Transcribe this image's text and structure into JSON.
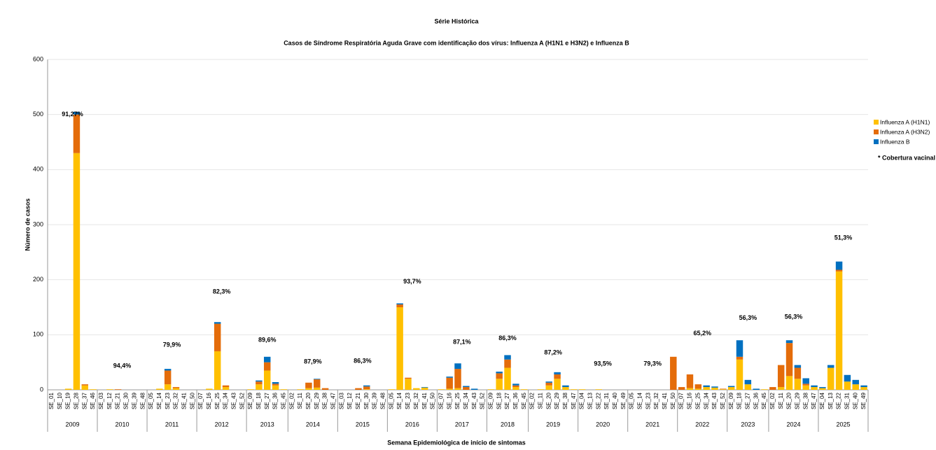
{
  "chart_data": {
    "type": "stacked_bar",
    "title": "Série Histórica",
    "subtitle": "Casos de Síndrome Respiratória Aguda Grave com identificação dos vírus: Influenza A (H1N1 e H3N2) e Influenza B",
    "y_label": "Número de casos",
    "x_label": "Semana Epidemiológica de início de sintomas",
    "note": "* Cobertura vacinal",
    "ylim": [
      0,
      600
    ],
    "yticks": [
      0,
      100,
      200,
      300,
      400,
      500,
      600
    ],
    "grid": true,
    "groups": [
      {
        "label": "2009",
        "categories": [
          "SE_01",
          "SE_10",
          "SE_19",
          "SE_28",
          "SE_37",
          "SE_46"
        ],
        "coverage": "91,27%",
        "coverage_y": 500
      },
      {
        "label": "2010",
        "categories": [
          "SE_03",
          "SE_12",
          "SE_21",
          "SE_30",
          "SE_39",
          "SE_48"
        ],
        "coverage": "94,4%",
        "coverage_y": 43
      },
      {
        "label": "2011",
        "categories": [
          "SE_05",
          "SE_14",
          "SE_23",
          "SE_32",
          "SE_41",
          "SE_50"
        ],
        "coverage": "79,9%",
        "coverage_y": 81
      },
      {
        "label": "2012",
        "categories": [
          "SE_07",
          "SE_16",
          "SE_25",
          "SE_34",
          "SE_43",
          "SE_52"
        ],
        "coverage": "82,3%",
        "coverage_y": 178
      },
      {
        "label": "2013",
        "categories": [
          "SE_09",
          "SE_18",
          "SE_27",
          "SE_36",
          "SE_45"
        ],
        "coverage": "89,6%",
        "coverage_y": 90
      },
      {
        "label": "2014",
        "categories": [
          "SE_02",
          "SE_11",
          "SE_20",
          "SE_29",
          "SE_38",
          "SE_47"
        ],
        "coverage": "87,9%",
        "coverage_y": 51
      },
      {
        "label": "2015",
        "categories": [
          "SE_03",
          "SE_12",
          "SE_21",
          "SE_30",
          "SE_39",
          "SE_48"
        ],
        "coverage": "86,3%",
        "coverage_y": 52
      },
      {
        "label": "2016",
        "categories": [
          "SE_05",
          "SE_14",
          "SE_23",
          "SE_32",
          "SE_41",
          "SE_50"
        ],
        "coverage": "93,7%",
        "coverage_y": 196
      },
      {
        "label": "2017",
        "categories": [
          "SE_07",
          "SE_16",
          "SE_25",
          "SE_34",
          "SE_43",
          "SE_52"
        ],
        "coverage": "87,1%",
        "coverage_y": 86
      },
      {
        "label": "2018",
        "categories": [
          "SE_09",
          "SE_18",
          "SE_27",
          "SE_36",
          "SE_45"
        ],
        "coverage": "86,3%",
        "coverage_y": 93
      },
      {
        "label": "2019",
        "categories": [
          "SE_02",
          "SE_11",
          "SE_20",
          "SE_29",
          "SE_38",
          "SE_47"
        ],
        "coverage": "87,2%",
        "coverage_y": 67
      },
      {
        "label": "2020",
        "categories": [
          "SE_04",
          "SE_13",
          "SE_22",
          "SE_31",
          "SE_40",
          "SE_49"
        ],
        "coverage": "93,5%",
        "coverage_y": 47
      },
      {
        "label": "2021",
        "categories": [
          "SE_05",
          "SE_14",
          "SE_23",
          "SE_32",
          "SE_41",
          "SE_50"
        ],
        "coverage": "79,3%",
        "coverage_y": 47
      },
      {
        "label": "2022",
        "categories": [
          "SE_07",
          "SE_16",
          "SE_25",
          "SE_34",
          "SE_43",
          "SE_52"
        ],
        "coverage": "65,2%",
        "coverage_y": 102
      },
      {
        "label": "2023",
        "categories": [
          "SE_09",
          "SE_18",
          "SE_27",
          "SE_36",
          "SE_45"
        ],
        "coverage": "56,3%",
        "coverage_y": 130
      },
      {
        "label": "2024",
        "categories": [
          "SE_02",
          "SE_11",
          "SE_20",
          "SE_29",
          "SE_38",
          "SE_47"
        ],
        "coverage": "56,3%",
        "coverage_y": 132
      },
      {
        "label": "2025",
        "categories": [
          "SE_04",
          "SE_13",
          "SE_22",
          "SE_31",
          "SE_40",
          "SE_49"
        ],
        "coverage": "51,3%",
        "coverage_y": 276
      }
    ],
    "series": [
      {
        "name": "Influenza A (H1N1)",
        "color": "#ffc000",
        "values": [
          0,
          0,
          2,
          430,
          8,
          1,
          0,
          1,
          0,
          0,
          0,
          0,
          0,
          2,
          10,
          3,
          0,
          0,
          0,
          2,
          70,
          5,
          0,
          0,
          1,
          10,
          35,
          8,
          1,
          0,
          1,
          3,
          4,
          0,
          0,
          0,
          0,
          0,
          1,
          0,
          0,
          1,
          150,
          20,
          3,
          4,
          0,
          1,
          2,
          3,
          0,
          0,
          0,
          1,
          20,
          40,
          5,
          1,
          0,
          1,
          8,
          20,
          5,
          1,
          1,
          0,
          1,
          0,
          0,
          0,
          0,
          0,
          0,
          0,
          0,
          0,
          0,
          3,
          2,
          5,
          4,
          1,
          5,
          55,
          10,
          0,
          1,
          0,
          5,
          25,
          20,
          8,
          5,
          3,
          40,
          215,
          15,
          10,
          5
        ]
      },
      {
        "name": "Influenza A (H3N2)",
        "color": "#e46c0a",
        "values": [
          0,
          0,
          0,
          70,
          2,
          0,
          0,
          0,
          1,
          0,
          0,
          0,
          0,
          0,
          25,
          2,
          0,
          0,
          0,
          0,
          50,
          3,
          0,
          0,
          0,
          5,
          15,
          3,
          0,
          0,
          0,
          10,
          15,
          3,
          0,
          0,
          0,
          3,
          5,
          0,
          0,
          0,
          5,
          2,
          0,
          0,
          0,
          0,
          20,
          35,
          5,
          0,
          0,
          0,
          10,
          15,
          3,
          0,
          0,
          0,
          5,
          8,
          0,
          0,
          0,
          0,
          0,
          0,
          0,
          0,
          0,
          0,
          0,
          0,
          0,
          60,
          5,
          25,
          8,
          0,
          0,
          1,
          0,
          5,
          0,
          0,
          0,
          5,
          40,
          60,
          20,
          3,
          0,
          0,
          0,
          3,
          0,
          0,
          0
        ]
      },
      {
        "name": "Influenza B",
        "color": "#0070c0",
        "values": [
          0,
          0,
          0,
          5,
          0,
          0,
          0,
          0,
          0,
          0,
          0,
          0,
          0,
          0,
          3,
          0,
          0,
          0,
          0,
          0,
          3,
          0,
          0,
          0,
          0,
          2,
          10,
          3,
          0,
          0,
          0,
          0,
          1,
          0,
          0,
          0,
          0,
          0,
          2,
          0,
          0,
          0,
          2,
          0,
          0,
          1,
          0,
          0,
          2,
          10,
          2,
          2,
          0,
          0,
          3,
          8,
          3,
          0,
          0,
          0,
          2,
          4,
          3,
          0,
          0,
          0,
          0,
          0,
          0,
          0,
          0,
          0,
          0,
          0,
          0,
          0,
          0,
          0,
          0,
          3,
          2,
          0,
          2,
          30,
          8,
          2,
          0,
          0,
          0,
          5,
          5,
          10,
          3,
          2,
          5,
          15,
          12,
          8,
          3
        ]
      }
    ]
  }
}
